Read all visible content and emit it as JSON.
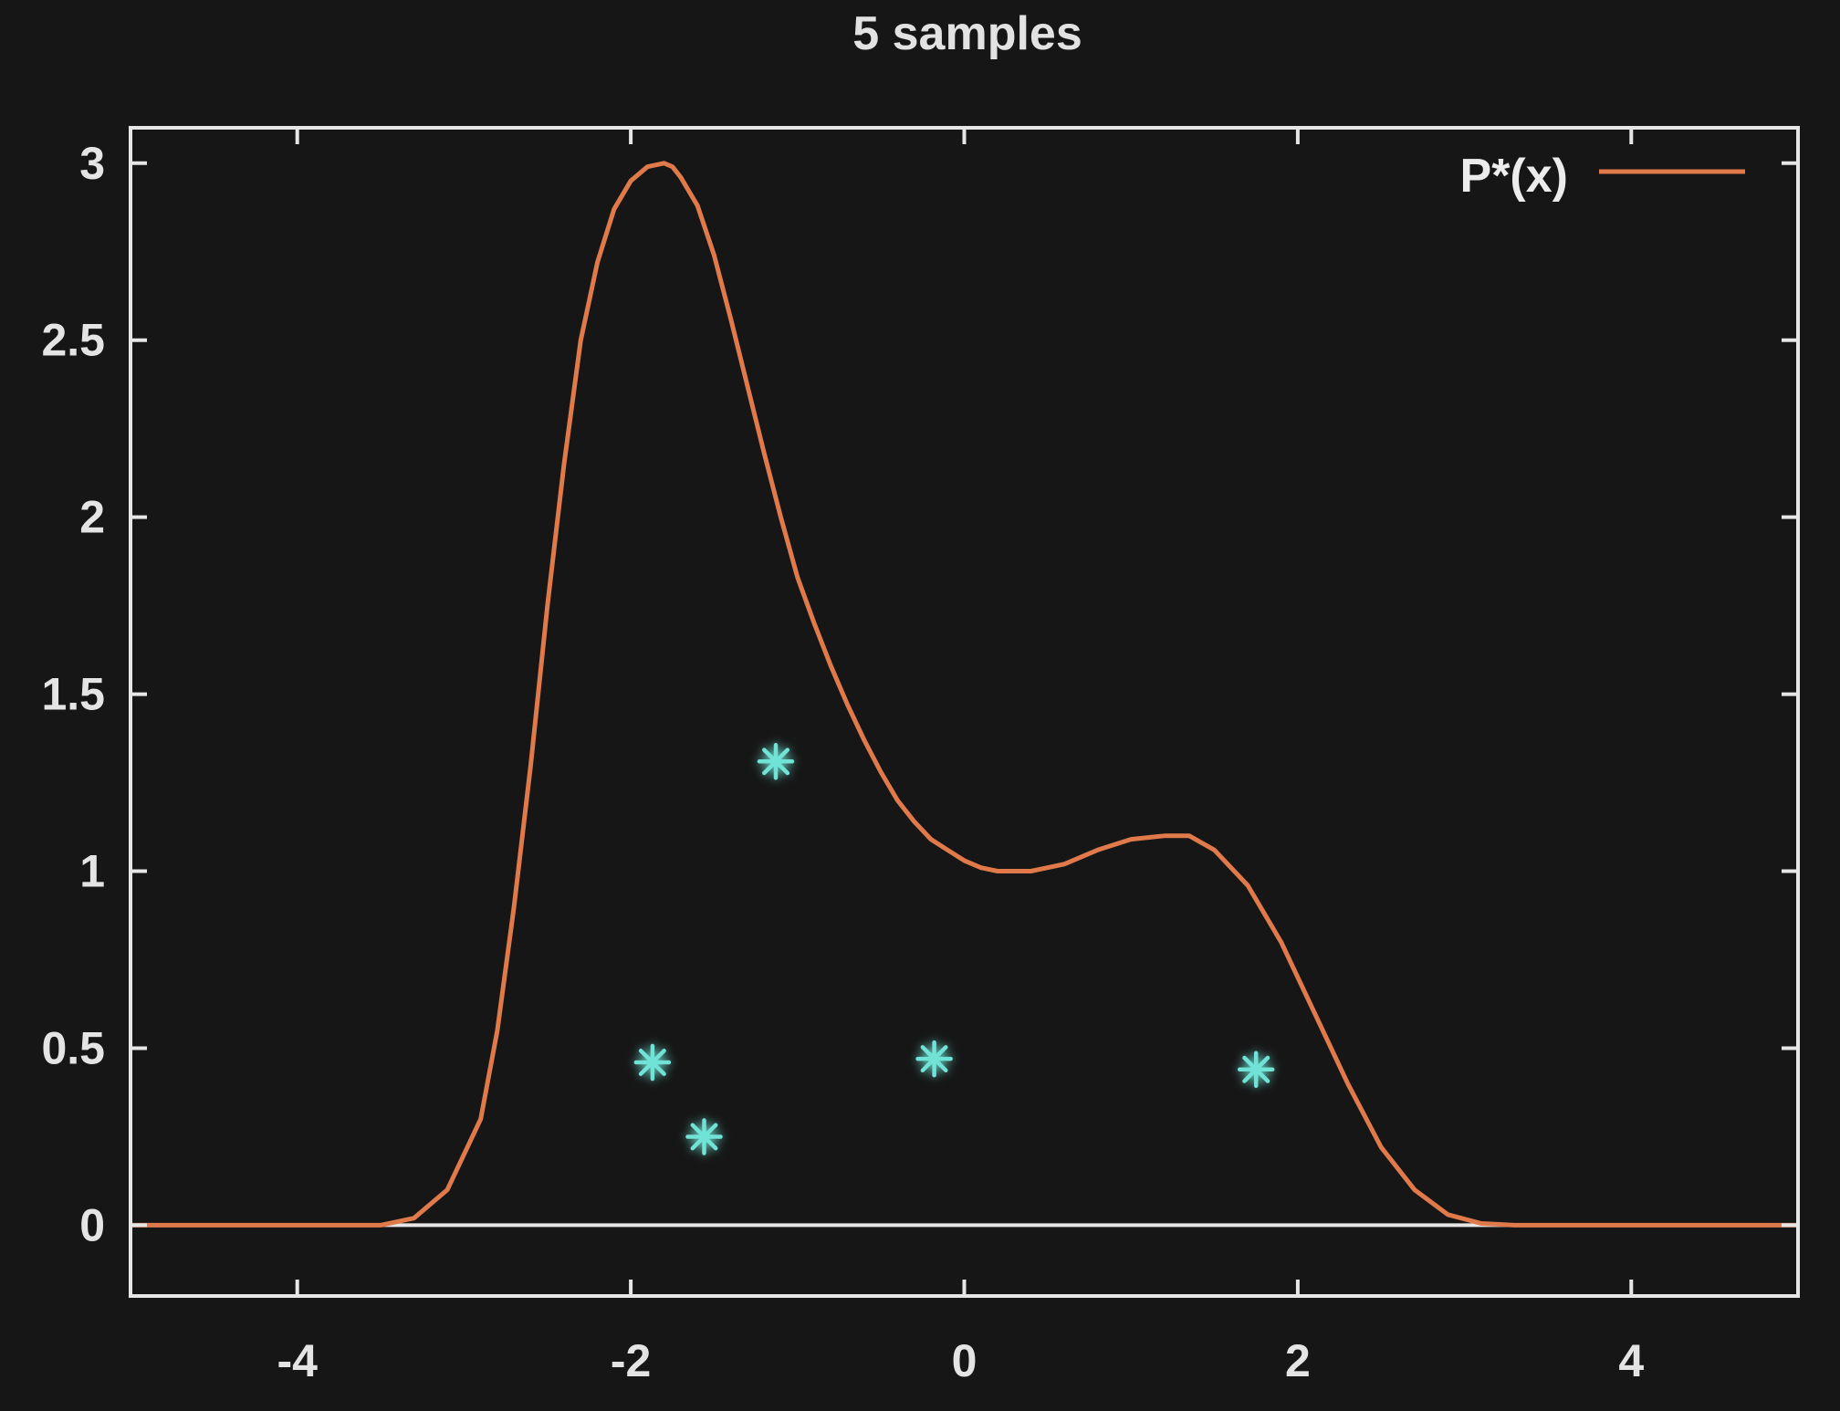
{
  "chart_data": {
    "type": "scatter",
    "title": "5 samples",
    "xlabel": "",
    "ylabel": "",
    "xlim": [
      -5,
      5
    ],
    "ylim": [
      -0.2,
      3.1
    ],
    "xticks": [
      "-4",
      "-2",
      "0",
      "2",
      "4"
    ],
    "xtick_values": [
      -4,
      -2,
      0,
      2,
      4
    ],
    "yticks": [
      "0",
      "0.5",
      "1",
      "1.5",
      "2",
      "2.5",
      "3"
    ],
    "ytick_values": [
      0,
      0.5,
      1,
      1.5,
      2,
      2.5,
      3
    ],
    "grid": false,
    "legend_position": "top-right",
    "zero_line": true,
    "series": [
      {
        "name": "P*(x)",
        "kind": "line",
        "color": "#e07a4a",
        "x": [
          -5,
          -3.5,
          -3.3,
          -3.1,
          -2.9,
          -2.8,
          -2.7,
          -2.6,
          -2.5,
          -2.4,
          -2.3,
          -2.2,
          -2.1,
          -2.0,
          -1.9,
          -1.8,
          -1.75,
          -1.7,
          -1.6,
          -1.5,
          -1.4,
          -1.3,
          -1.2,
          -1.1,
          -1.0,
          -0.9,
          -0.8,
          -0.7,
          -0.6,
          -0.5,
          -0.4,
          -0.3,
          -0.2,
          -0.1,
          0.0,
          0.1,
          0.2,
          0.4,
          0.6,
          0.8,
          1.0,
          1.2,
          1.35,
          1.5,
          1.7,
          1.9,
          2.1,
          2.3,
          2.5,
          2.7,
          2.9,
          3.1,
          3.3,
          5
        ],
        "y": [
          0,
          0,
          0.02,
          0.1,
          0.3,
          0.55,
          0.9,
          1.3,
          1.75,
          2.15,
          2.5,
          2.72,
          2.87,
          2.95,
          2.99,
          3.0,
          2.99,
          2.96,
          2.88,
          2.74,
          2.56,
          2.37,
          2.18,
          2.0,
          1.83,
          1.7,
          1.58,
          1.47,
          1.37,
          1.28,
          1.2,
          1.14,
          1.09,
          1.06,
          1.03,
          1.01,
          1.0,
          1.0,
          1.02,
          1.06,
          1.09,
          1.1,
          1.1,
          1.06,
          0.96,
          0.8,
          0.6,
          0.4,
          0.22,
          0.1,
          0.03,
          0.005,
          0,
          0
        ]
      },
      {
        "name": "",
        "kind": "points",
        "marker": "star",
        "color": "#6fe3d6",
        "x": [
          -1.87,
          -1.56,
          -1.13,
          -0.18,
          1.75
        ],
        "y": [
          0.46,
          0.25,
          1.31,
          0.47,
          0.44
        ]
      }
    ]
  },
  "colors": {
    "background": "#161616",
    "frame": "#e6e6e6",
    "curve": "#e07a4a",
    "samples": "#6fe3d6",
    "text": "#e4e4e4"
  }
}
